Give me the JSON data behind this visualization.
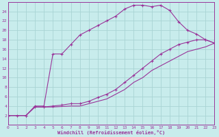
{
  "xlabel": "Windchill (Refroidissement éolien,°C)",
  "bg_color": "#c8ecec",
  "grid_color": "#a8d4d4",
  "line_color": "#993399",
  "xlim": [
    0,
    23
  ],
  "ylim": [
    0,
    26
  ],
  "xticks": [
    0,
    1,
    2,
    3,
    4,
    5,
    6,
    7,
    8,
    9,
    10,
    11,
    12,
    13,
    14,
    15,
    16,
    17,
    18,
    19,
    20,
    21,
    22,
    23
  ],
  "yticks": [
    2,
    4,
    6,
    8,
    10,
    12,
    14,
    16,
    18,
    20,
    22,
    24
  ],
  "curve1_x": [
    0,
    1,
    2,
    3,
    4,
    5,
    6,
    7,
    8,
    9,
    10,
    11,
    12,
    13,
    14,
    15,
    16,
    17,
    18,
    19,
    20,
    21,
    22,
    23
  ],
  "curve1_y": [
    2,
    2,
    2,
    4,
    4,
    15,
    15,
    17,
    19,
    20,
    21,
    22,
    23,
    24.5,
    25.3,
    25.3,
    25.0,
    25.3,
    24.2,
    21.8,
    20.0,
    19.2,
    18.0,
    17.3
  ],
  "curve2_x": [
    0,
    2,
    3,
    4,
    5,
    6,
    7,
    8,
    9,
    10,
    11,
    12,
    13,
    14,
    15,
    16,
    17,
    18,
    19,
    20,
    21,
    22,
    23
  ],
  "curve2_y": [
    2,
    2,
    3.8,
    3.8,
    4.0,
    4.2,
    4.5,
    4.5,
    5.0,
    5.8,
    6.5,
    7.5,
    9.0,
    10.5,
    12.0,
    13.5,
    15.0,
    16.0,
    17.0,
    17.5,
    18.0,
    18.0,
    17.3
  ],
  "curve3_x": [
    0,
    2,
    3,
    4,
    5,
    6,
    7,
    8,
    9,
    10,
    11,
    12,
    13,
    14,
    15,
    16,
    17,
    18,
    19,
    20,
    21,
    22,
    23
  ],
  "curve3_y": [
    2,
    2,
    3.8,
    3.8,
    3.8,
    3.9,
    4.0,
    4.0,
    4.5,
    5.0,
    5.5,
    6.5,
    7.5,
    9.0,
    10.0,
    11.5,
    12.5,
    13.5,
    14.5,
    15.5,
    16.0,
    16.5,
    17.3
  ]
}
